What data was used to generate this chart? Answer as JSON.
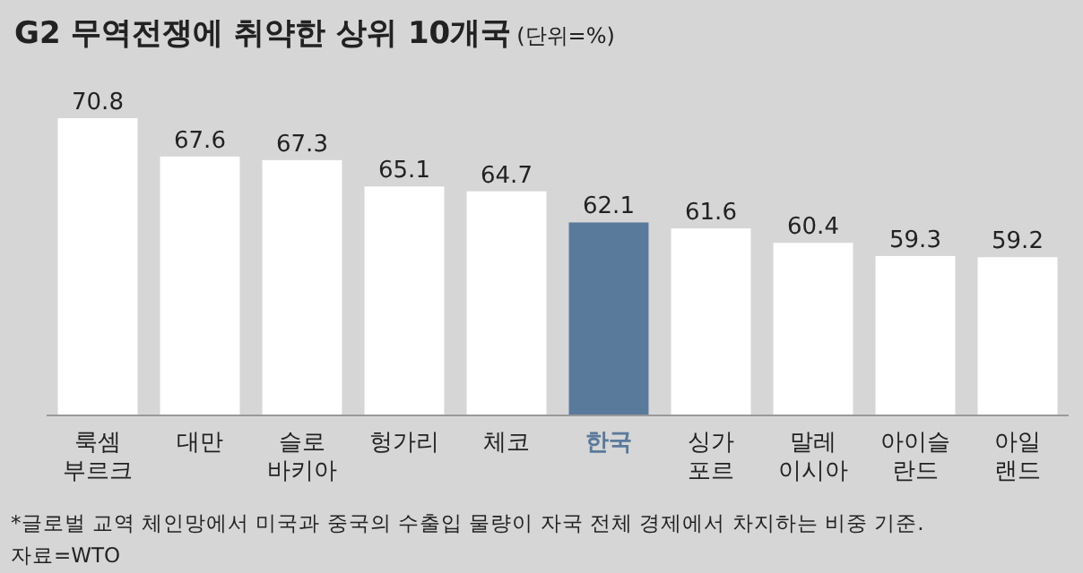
{
  "chart_data": {
    "type": "bar",
    "title": "G2 무역전쟁에 취약한 상위 10개국",
    "subtitle": "(단위=%)",
    "categories": [
      "룩셈\n부르크",
      "대만",
      "슬로\n바키아",
      "헝가리",
      "체코",
      "한국",
      "싱가\n포르",
      "말레\n이시아",
      "아이슬\n란드",
      "아일\n랜드"
    ],
    "values": [
      70.8,
      67.6,
      67.3,
      65.1,
      64.7,
      62.1,
      61.6,
      60.4,
      59.3,
      59.2
    ],
    "colors": [
      "#ffffff",
      "#ffffff",
      "#ffffff",
      "#ffffff",
      "#ffffff",
      "#5a7a9c",
      "#ffffff",
      "#ffffff",
      "#ffffff",
      "#ffffff"
    ],
    "ylim": [
      46,
      70.8
    ],
    "data_labels": true,
    "annotations": [
      "*글로벌 교역 체인망에서 미국과 중국의 수출입 물량이 자국 전체 경제에서 차지하는 비중 기준.",
      "자료=WTO"
    ]
  }
}
